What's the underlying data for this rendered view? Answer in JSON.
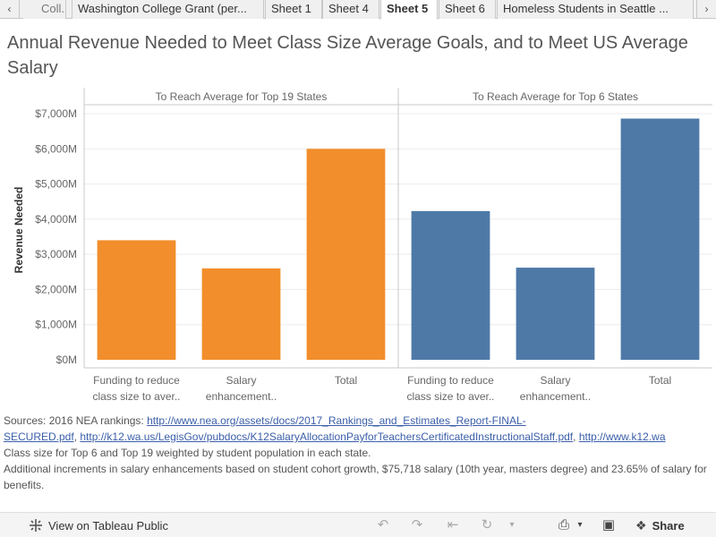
{
  "tabs": {
    "prev_icon": "chevron-left-icon",
    "first_partial": "Coll...",
    "items": [
      {
        "label": "Washington College Grant (per...",
        "active": false
      },
      {
        "label": "Sheet 1",
        "active": false
      },
      {
        "label": "Sheet 4",
        "active": false
      },
      {
        "label": "Sheet 5",
        "active": true
      },
      {
        "label": "Sheet 6",
        "active": false
      },
      {
        "label": "Homeless Students in Seattle ...",
        "active": false
      }
    ],
    "next_icon": "chevron-right-icon"
  },
  "title": "Annual Revenue Needed to Meet Class Size Average Goals, and to Meet US Average Salary",
  "chart_data": {
    "type": "bar",
    "ylabel": "Revenue Needed",
    "ylim": [
      0,
      7000
    ],
    "yticks": [
      {
        "value": 0,
        "label": "$0M"
      },
      {
        "value": 1000,
        "label": "$1,000M"
      },
      {
        "value": 2000,
        "label": "$2,000M"
      },
      {
        "value": 3000,
        "label": "$3,000M"
      },
      {
        "value": 4000,
        "label": "$4,000M"
      },
      {
        "value": 5000,
        "label": "$5,000M"
      },
      {
        "value": 6000,
        "label": "$6,000M"
      },
      {
        "value": 7000,
        "label": "$7,000M"
      }
    ],
    "grid": true,
    "panels": [
      {
        "header": "To Reach Average for Top 19 States",
        "color": "#f28e2b",
        "categories": [
          [
            "Funding to reduce",
            "class size to aver.."
          ],
          [
            "Salary",
            "enhancement.."
          ],
          [
            "Total"
          ]
        ],
        "values": [
          3400,
          2600,
          6000
        ]
      },
      {
        "header": "To Reach Average for Top 6 States",
        "color": "#4e79a7",
        "categories": [
          [
            "Funding to reduce",
            "class size to aver.."
          ],
          [
            "Salary",
            "enhancement.."
          ],
          [
            "Total"
          ]
        ],
        "values": [
          4230,
          2620,
          6860
        ]
      }
    ]
  },
  "notes": {
    "sources_prefix": "Sources: 2016 NEA rankings: ",
    "link1_part1": "http://www.nea.org/assets/docs/2017_Rankings_and_Estimates_Report-FINAL-",
    "link1_part2": "SECURED.pdf",
    "link2": "http://k12.wa.us/LegisGov/pubdocs/K12SalaryAllocationPayforTeachersCertificatedInstructionalStaff.pdf",
    "link3": "http://www.k12.wa",
    "line3": "Class size for Top 6 and Top 19 weighted by student population in each state.",
    "line4": "Additional increments in salary enhancements based on student cohort growth, $75,718 salary (10th year, masters degree) and 23.65% of salary for benefits."
  },
  "footer": {
    "view_label": "View on Tableau Public",
    "share_label": "Share",
    "icons": [
      "undo-icon",
      "redo-icon",
      "revert-icon",
      "refresh-icon",
      "download-icon",
      "fullscreen-icon",
      "share-icon"
    ]
  }
}
